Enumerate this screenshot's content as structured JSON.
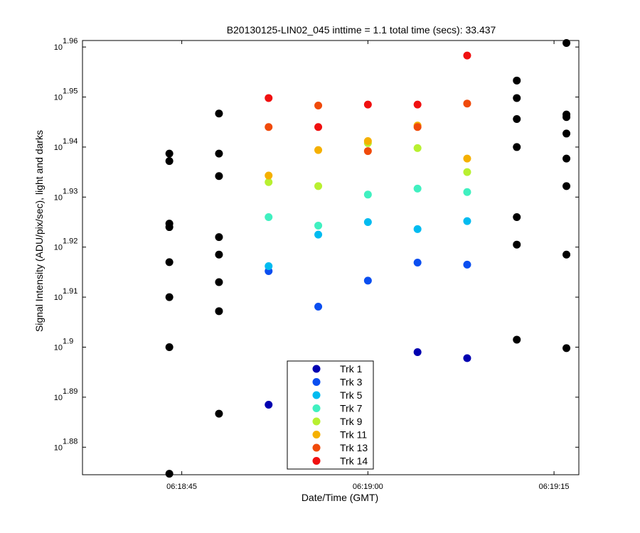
{
  "chart_data": {
    "type": "scatter",
    "title": "B20130125-LIN02_045 inttime = 1.1 total time (secs): 33.437",
    "xlabel": "Date/Time (GMT)",
    "ylabel": "Signal Intensity (ADU/pix/sec), light and darks",
    "y_scale": "log",
    "x_ticks": [
      "06:18:45",
      "06:19:00",
      "06:19:15"
    ],
    "y_tick_base": "10",
    "y_tick_exponents": [
      "1.88",
      "1.89",
      "1.9",
      "1.91",
      "1.92",
      "1.93",
      "1.94",
      "1.95",
      "1.96"
    ],
    "ylim_exponent": [
      1.8745,
      1.9613
    ],
    "xlim": [
      "06:18:37",
      "06:19:17"
    ],
    "grid": false,
    "legend_position": "bottom-center",
    "darks": {
      "color": "#000000",
      "points": [
        {
          "x": "06:18:44",
          "y_exp": [
            1.9387,
            1.9372,
            1.9247,
            1.924,
            1.917,
            1.91,
            1.9,
            1.8747
          ]
        },
        {
          "x": "06:18:48",
          "y_exp": [
            1.9467,
            1.9387,
            1.9342,
            1.922,
            1.9185,
            1.913,
            1.9072,
            1.8867
          ]
        },
        {
          "x": "06:19:12",
          "y_exp": [
            1.9533,
            1.9498,
            1.9456,
            1.94,
            1.926,
            1.9205,
            1.9015
          ]
        },
        {
          "x": "06:19:16",
          "y_exp": [
            1.9608,
            1.9465,
            1.946,
            1.9427,
            1.9377,
            1.9322,
            1.9185,
            1.8998
          ]
        }
      ]
    },
    "series": [
      {
        "name": "Trk 1",
        "color": "#0000b0",
        "x": [
          "06:18:52",
          "06:19:04",
          "06:19:08"
        ],
        "y_exp": [
          1.8885,
          1.899,
          1.8978
        ]
      },
      {
        "name": "Trk 3",
        "color": "#0a4ef0",
        "x": [
          "06:18:52",
          "06:18:56",
          "06:19:00",
          "06:19:04",
          "06:19:08"
        ],
        "y_exp": [
          1.9152,
          1.9081,
          1.9133,
          1.9169,
          1.9165
        ]
      },
      {
        "name": "Trk 5",
        "color": "#00bbf0",
        "x": [
          "06:18:52",
          "06:18:56",
          "06:19:00",
          "06:19:04",
          "06:19:08"
        ],
        "y_exp": [
          1.9162,
          1.9225,
          1.925,
          1.9236,
          1.9252
        ]
      },
      {
        "name": "Trk 7",
        "color": "#40f0c0",
        "x": [
          "06:18:52",
          "06:18:56",
          "06:19:00",
          "06:19:04",
          "06:19:08"
        ],
        "y_exp": [
          1.926,
          1.9243,
          1.9305,
          1.9317,
          1.931
        ]
      },
      {
        "name": "Trk 9",
        "color": "#b8f030",
        "x": [
          "06:18:52",
          "06:18:56",
          "06:19:00",
          "06:19:04",
          "06:19:08"
        ],
        "y_exp": [
          1.933,
          1.9322,
          1.9408,
          1.9398,
          1.935
        ]
      },
      {
        "name": "Trk 11",
        "color": "#f5b000",
        "x": [
          "06:18:52",
          "06:18:56",
          "06:19:00",
          "06:19:04",
          "06:19:08"
        ],
        "y_exp": [
          1.9343,
          1.9394,
          1.9412,
          1.9443,
          1.9377
        ]
      },
      {
        "name": "Trk 13",
        "color": "#f04a0a",
        "x": [
          "06:18:52",
          "06:18:56",
          "06:19:00",
          "06:19:04",
          "06:19:08"
        ],
        "y_exp": [
          1.944,
          1.9483,
          1.9392,
          1.944,
          1.9487
        ]
      },
      {
        "name": "Trk 14",
        "color": "#f01010",
        "x": [
          "06:18:52",
          "06:18:56",
          "06:19:00",
          "06:19:04",
          "06:19:08"
        ],
        "y_exp": [
          1.9498,
          1.944,
          1.9485,
          1.9485,
          1.9583
        ]
      }
    ]
  }
}
